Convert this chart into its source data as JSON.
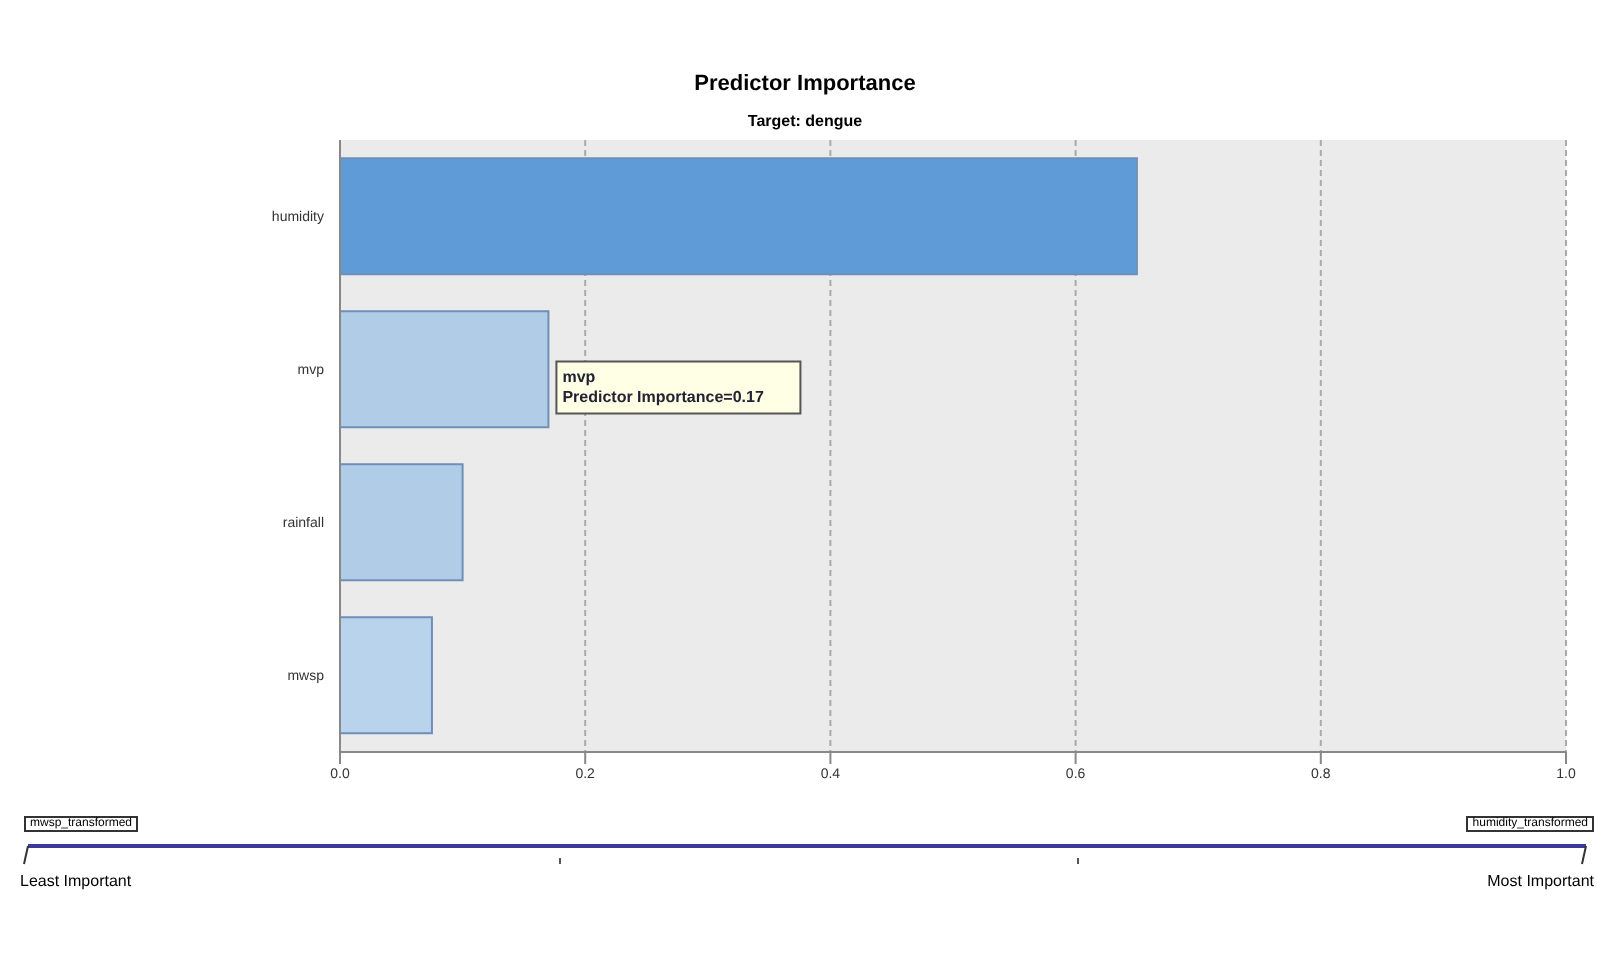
{
  "chart_data": {
    "type": "bar",
    "orientation": "horizontal",
    "title": "Predictor Importance",
    "subtitle": "Target: dengue",
    "categories": [
      "humidity",
      "mvp",
      "rainfall",
      "mwsp"
    ],
    "values": [
      0.65,
      0.17,
      0.1,
      0.075
    ],
    "colors": [
      "#5f9bd6",
      "#b1cce6",
      "#b1cce6",
      "#b9d3ec"
    ],
    "xlim": [
      0,
      1
    ],
    "xticks": [
      {
        "value": 0,
        "label": "0.0"
      },
      {
        "value": 0.2,
        "label": "0.2"
      },
      {
        "value": 0.4,
        "label": "0.4"
      },
      {
        "value": 0.6,
        "label": "0.6"
      },
      {
        "value": 0.8,
        "label": "0.8"
      },
      {
        "value": 1,
        "label": "1.0"
      }
    ],
    "grid": "x",
    "annotations": [
      {
        "text": "mvp\nPredictor Importance=0.17",
        "x": 0.17,
        "y": "mvp"
      },
      "mwsp_transformed",
      "humidity_transformed",
      "Least Important",
      "Most Important"
    ]
  }
}
